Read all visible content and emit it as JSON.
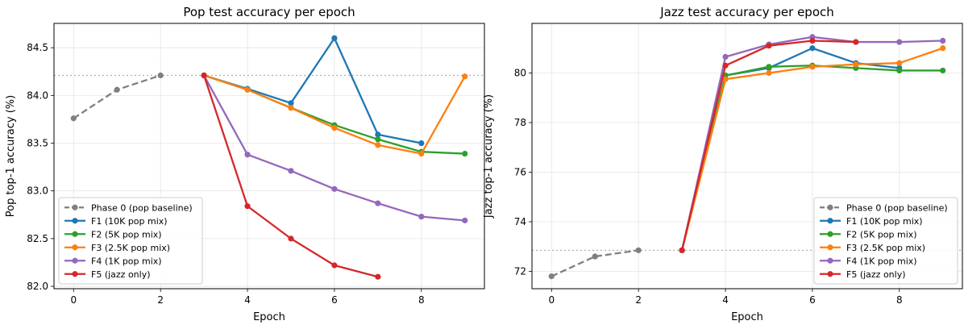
{
  "chart_data": [
    {
      "type": "line",
      "title": "Pop test accuracy per epoch",
      "xlabel": "Epoch",
      "ylabel": "Pop top-1 accuracy (%)",
      "xlim": [
        -0.45,
        9.45
      ],
      "ylim": [
        81.975,
        84.755
      ],
      "xticks": [
        0,
        2,
        4,
        6,
        8
      ],
      "yticks": [
        82.0,
        82.5,
        83.0,
        83.5,
        84.0,
        84.5
      ],
      "ytick_format": 1,
      "reference_line": 84.21,
      "grid": true,
      "legend_position": "lower-left",
      "series": [
        {
          "name": "Phase 0 (pop baseline)",
          "color": "#7f7f7f",
          "dashed": true,
          "x": [
            0,
            1,
            2
          ],
          "y": [
            83.76,
            84.06,
            84.21
          ]
        },
        {
          "name": "F1 (10K pop mix)",
          "color": "#1f77b4",
          "x": [
            3,
            4,
            5,
            6,
            7,
            8
          ],
          "y": [
            84.21,
            84.07,
            83.92,
            84.6,
            83.59,
            83.5
          ]
        },
        {
          "name": "F2 (5K pop mix)",
          "color": "#2ca02c",
          "x": [
            3,
            4,
            5,
            6,
            7,
            8,
            9
          ],
          "y": [
            84.21,
            84.06,
            83.87,
            83.69,
            83.54,
            83.41,
            83.39
          ]
        },
        {
          "name": "F3 (2.5K pop mix)",
          "color": "#ff7f0e",
          "x": [
            3,
            4,
            5,
            6,
            7,
            8,
            9
          ],
          "y": [
            84.21,
            84.06,
            83.87,
            83.66,
            83.48,
            83.39,
            84.2
          ]
        },
        {
          "name": "F4 (1K pop mix)",
          "color": "#9467bd",
          "x": [
            3,
            4,
            5,
            6,
            7,
            8,
            9
          ],
          "y": [
            84.21,
            83.38,
            83.21,
            83.02,
            82.87,
            82.73,
            82.69
          ]
        },
        {
          "name": "F5 (jazz only)",
          "color": "#d62728",
          "x": [
            3,
            4,
            5,
            6,
            7
          ],
          "y": [
            84.21,
            82.84,
            82.5,
            82.22,
            82.1
          ]
        }
      ]
    },
    {
      "type": "line",
      "title": "Jazz test accuracy per epoch",
      "xlabel": "Epoch",
      "ylabel": "Jazz top-1 accuracy (%)",
      "xlim": [
        -0.45,
        9.45
      ],
      "ylim": [
        71.3,
        82.0
      ],
      "xticks": [
        0,
        2,
        4,
        6,
        8
      ],
      "yticks": [
        72,
        74,
        76,
        78,
        80
      ],
      "ytick_format": 0,
      "reference_line": 72.85,
      "grid": true,
      "legend_position": "lower-right",
      "series": [
        {
          "name": "Phase 0 (pop baseline)",
          "color": "#7f7f7f",
          "dashed": true,
          "x": [
            0,
            1,
            2
          ],
          "y": [
            71.8,
            72.6,
            72.85
          ]
        },
        {
          "name": "F1 (10K pop mix)",
          "color": "#1f77b4",
          "x": [
            3,
            4,
            5,
            6,
            7,
            8
          ],
          "y": [
            72.85,
            79.9,
            80.2,
            81.0,
            80.4,
            80.2
          ]
        },
        {
          "name": "F2 (5K pop mix)",
          "color": "#2ca02c",
          "x": [
            3,
            4,
            5,
            6,
            7,
            8,
            9
          ],
          "y": [
            72.85,
            79.9,
            80.25,
            80.3,
            80.2,
            80.1,
            80.1
          ]
        },
        {
          "name": "F3 (2.5K pop mix)",
          "color": "#ff7f0e",
          "x": [
            3,
            4,
            5,
            6,
            7,
            8,
            9
          ],
          "y": [
            72.85,
            79.75,
            80.0,
            80.25,
            80.35,
            80.4,
            81.0
          ]
        },
        {
          "name": "F4 (1K pop mix)",
          "color": "#9467bd",
          "x": [
            3,
            4,
            5,
            6,
            7,
            8,
            9
          ],
          "y": [
            72.85,
            80.65,
            81.15,
            81.45,
            81.25,
            81.25,
            81.3
          ]
        },
        {
          "name": "F5 (jazz only)",
          "color": "#d62728",
          "x": [
            3,
            4,
            5,
            6,
            7
          ],
          "y": [
            72.85,
            80.3,
            81.1,
            81.3,
            81.25
          ]
        }
      ]
    }
  ]
}
